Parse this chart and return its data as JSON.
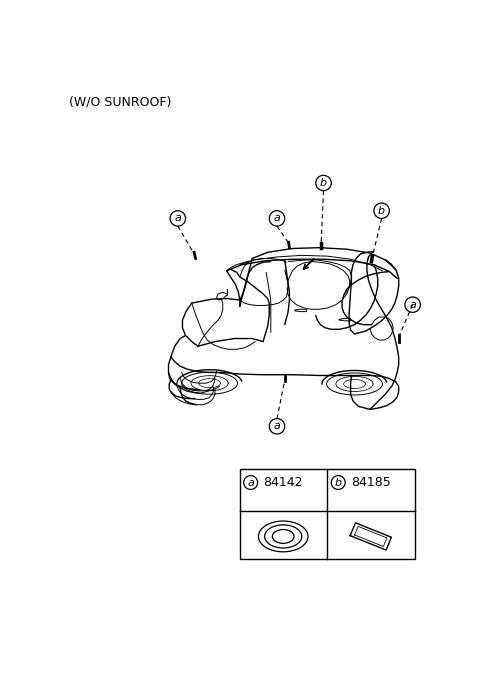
{
  "title": "(W/O SUNROOF)",
  "bg_color": "#ffffff",
  "part_a_num": "84142",
  "part_b_num": "84185",
  "car_color": "black",
  "label_fontsize": 8,
  "title_fontsize": 9
}
